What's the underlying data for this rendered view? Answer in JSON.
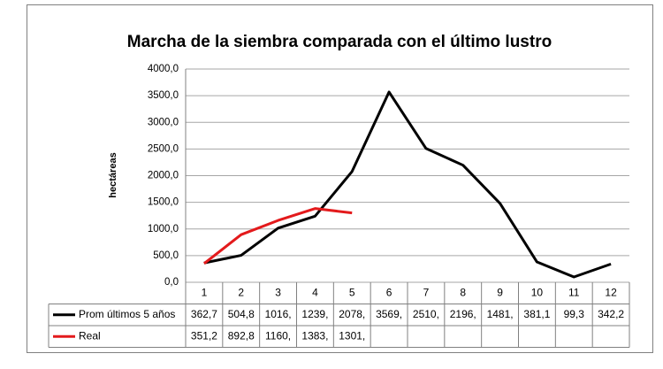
{
  "chart_data": {
    "type": "line",
    "title": "Marcha de la siembra comparada con el último lustro",
    "y_label": "hectáreas",
    "categories": [
      "1",
      "2",
      "3",
      "4",
      "5",
      "6",
      "7",
      "8",
      "9",
      "10",
      "11",
      "12"
    ],
    "series": [
      {
        "name": "Prom últimos 5 años",
        "color": "#000000",
        "values": [
          362.7,
          504.8,
          1016,
          1239,
          2078,
          3569,
          2510,
          2196,
          1481,
          381.1,
          99.3,
          342.2
        ],
        "value_labels": [
          "362,7",
          "504,8",
          "1016,",
          "1239,",
          "2078,",
          "3569,",
          "2510,",
          "2196,",
          "1481,",
          "381,1",
          "99,3",
          "342,2"
        ]
      },
      {
        "name": "Real",
        "color": "#e31a1c",
        "values": [
          351.2,
          892.8,
          1160,
          1383,
          1301,
          null,
          null,
          null,
          null,
          null,
          null,
          null
        ],
        "value_labels": [
          "351,2",
          "892,8",
          "1160,",
          "1383,",
          "1301,",
          null,
          null,
          null,
          null,
          null,
          null,
          null
        ]
      }
    ],
    "ylim": [
      0,
      4000
    ],
    "yticks": [
      {
        "value": 0,
        "label": "0,0"
      },
      {
        "value": 500,
        "label": "500,0"
      },
      {
        "value": 1000,
        "label": "1000,0"
      },
      {
        "value": 1500,
        "label": "1500,0"
      },
      {
        "value": 2000,
        "label": "2000,0"
      },
      {
        "value": 2500,
        "label": "2500,0"
      },
      {
        "value": 3000,
        "label": "3000,0"
      },
      {
        "value": 3500,
        "label": "3500,0"
      },
      {
        "value": 4000,
        "label": "4000,0"
      }
    ],
    "grid": true
  }
}
